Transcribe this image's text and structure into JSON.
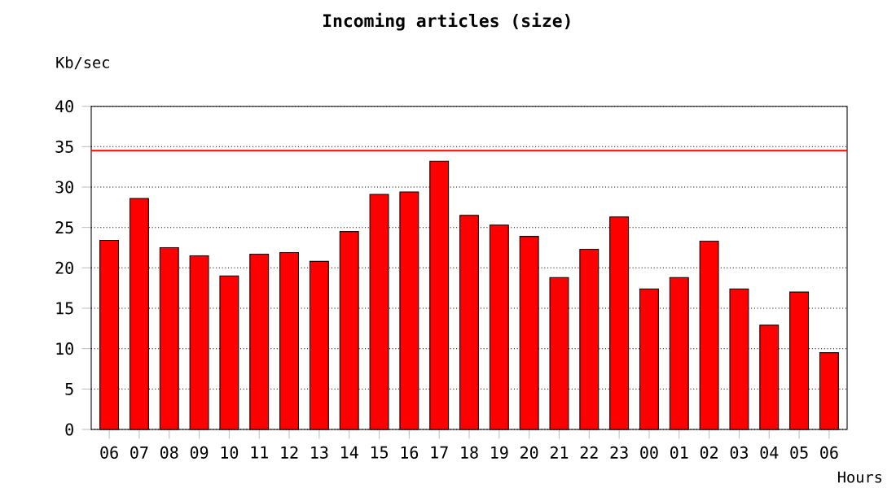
{
  "chart_data": {
    "type": "bar",
    "title": "Incoming articles (size)",
    "xlabel": "Hours",
    "ylabel": "Kb/sec",
    "categories": [
      "06",
      "07",
      "08",
      "09",
      "10",
      "11",
      "12",
      "13",
      "14",
      "15",
      "16",
      "17",
      "18",
      "19",
      "20",
      "21",
      "22",
      "23",
      "00",
      "01",
      "02",
      "03",
      "04",
      "05",
      "06"
    ],
    "values": [
      23.4,
      28.6,
      22.5,
      21.5,
      19.0,
      21.7,
      21.9,
      20.8,
      24.5,
      29.1,
      29.4,
      33.2,
      26.5,
      25.3,
      23.9,
      18.8,
      22.3,
      26.3,
      17.4,
      18.8,
      23.3,
      17.4,
      12.9,
      17.0,
      9.5
    ],
    "color": "#ff0000",
    "ylim": [
      0,
      40
    ],
    "yticks": [
      0,
      5,
      10,
      15,
      20,
      25,
      30,
      35,
      40
    ],
    "grid": "y",
    "ref_lines": [
      {
        "axis": "y",
        "value": 34.5,
        "color": "#ff0000"
      }
    ]
  }
}
